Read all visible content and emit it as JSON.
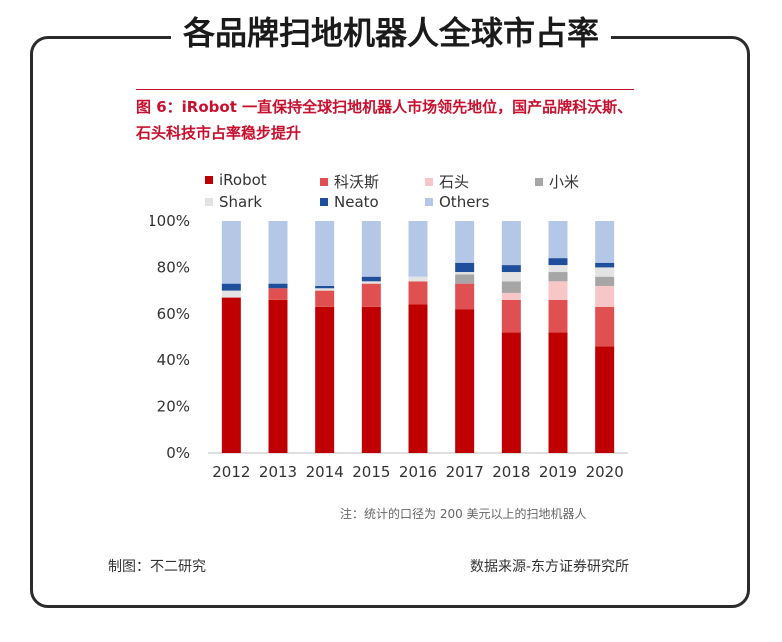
{
  "header": {
    "title": "各品牌扫地机器人全球市占率"
  },
  "figure": {
    "caption": "图 6：iRobot 一直保持全球扫地机器人市场领先地位，国产品牌科沃斯、石头科技市占率稳步提升",
    "note": "注：统计的口径为 200 美元以上的扫地机器人"
  },
  "footer": {
    "left": "制图：不二研究",
    "right": "数据来源-东方证券研究所"
  },
  "chart_data": {
    "type": "bar",
    "stacked": true,
    "categories": [
      "2012",
      "2013",
      "2014",
      "2015",
      "2016",
      "2017",
      "2018",
      "2019",
      "2020"
    ],
    "series": [
      {
        "name": "iRobot",
        "color": "#c00000",
        "values": [
          67,
          66,
          63,
          63,
          64,
          62,
          52,
          52,
          46
        ]
      },
      {
        "name": "科沃斯",
        "color": "#e05050",
        "values": [
          0,
          5,
          7,
          10,
          10,
          11,
          14,
          14,
          17
        ]
      },
      {
        "name": "石头",
        "color": "#f7c6c6",
        "values": [
          0,
          0,
          0,
          0,
          0,
          0,
          3,
          8,
          9
        ]
      },
      {
        "name": "小米",
        "color": "#a6a6a6",
        "values": [
          0,
          0,
          0,
          0,
          0,
          4,
          5,
          4,
          4
        ]
      },
      {
        "name": "Shark",
        "color": "#e3e3e3",
        "values": [
          3,
          0,
          1,
          1,
          2,
          1,
          4,
          3,
          4
        ]
      },
      {
        "name": "Neato",
        "color": "#1f4e9c",
        "values": [
          3,
          2,
          1,
          2,
          0,
          4,
          3,
          3,
          2
        ]
      },
      {
        "name": "Others",
        "color": "#b4c7e7",
        "values": [
          27,
          27,
          28,
          24,
          24,
          18,
          19,
          16,
          18
        ]
      }
    ],
    "y_ticks": [
      "0%",
      "20%",
      "40%",
      "60%",
      "80%",
      "100%"
    ],
    "ylim": [
      0,
      100
    ],
    "legend_position": "top"
  }
}
